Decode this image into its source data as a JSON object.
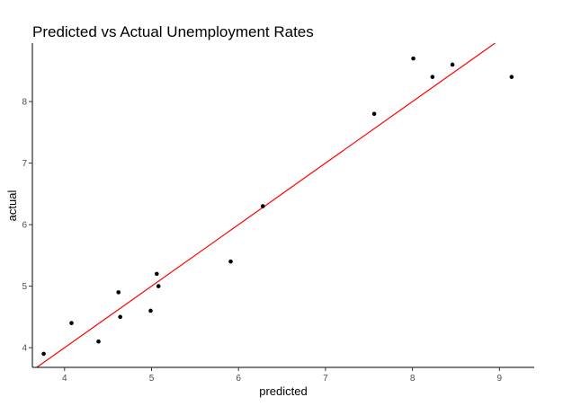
{
  "chart_data": {
    "type": "scatter",
    "title": "Predicted vs Actual Unemployment Rates",
    "xlabel": "predicted",
    "ylabel": "actual",
    "xlim": [
      3.63,
      9.4
    ],
    "ylim": [
      3.68,
      8.95
    ],
    "xticks": [
      4,
      5,
      6,
      7,
      8,
      9
    ],
    "yticks": [
      4,
      5,
      6,
      7,
      8
    ],
    "grid": false,
    "legend": "none",
    "point_color": "#000000",
    "line_color": "#ff0000",
    "points": [
      {
        "x": 3.76,
        "y": 3.9
      },
      {
        "x": 4.08,
        "y": 4.4
      },
      {
        "x": 4.39,
        "y": 4.1
      },
      {
        "x": 4.62,
        "y": 4.9
      },
      {
        "x": 4.64,
        "y": 4.5
      },
      {
        "x": 4.99,
        "y": 4.6
      },
      {
        "x": 5.06,
        "y": 5.2
      },
      {
        "x": 5.08,
        "y": 5.0
      },
      {
        "x": 5.91,
        "y": 5.4
      },
      {
        "x": 6.28,
        "y": 6.3
      },
      {
        "x": 7.56,
        "y": 7.8
      },
      {
        "x": 8.01,
        "y": 8.7
      },
      {
        "x": 8.23,
        "y": 8.4
      },
      {
        "x": 8.46,
        "y": 8.6
      },
      {
        "x": 9.14,
        "y": 8.4
      }
    ],
    "fit_line": {
      "type": "identity",
      "points": [
        {
          "x": 3.68,
          "y": 3.68
        },
        {
          "x": 8.95,
          "y": 8.95
        }
      ]
    }
  }
}
